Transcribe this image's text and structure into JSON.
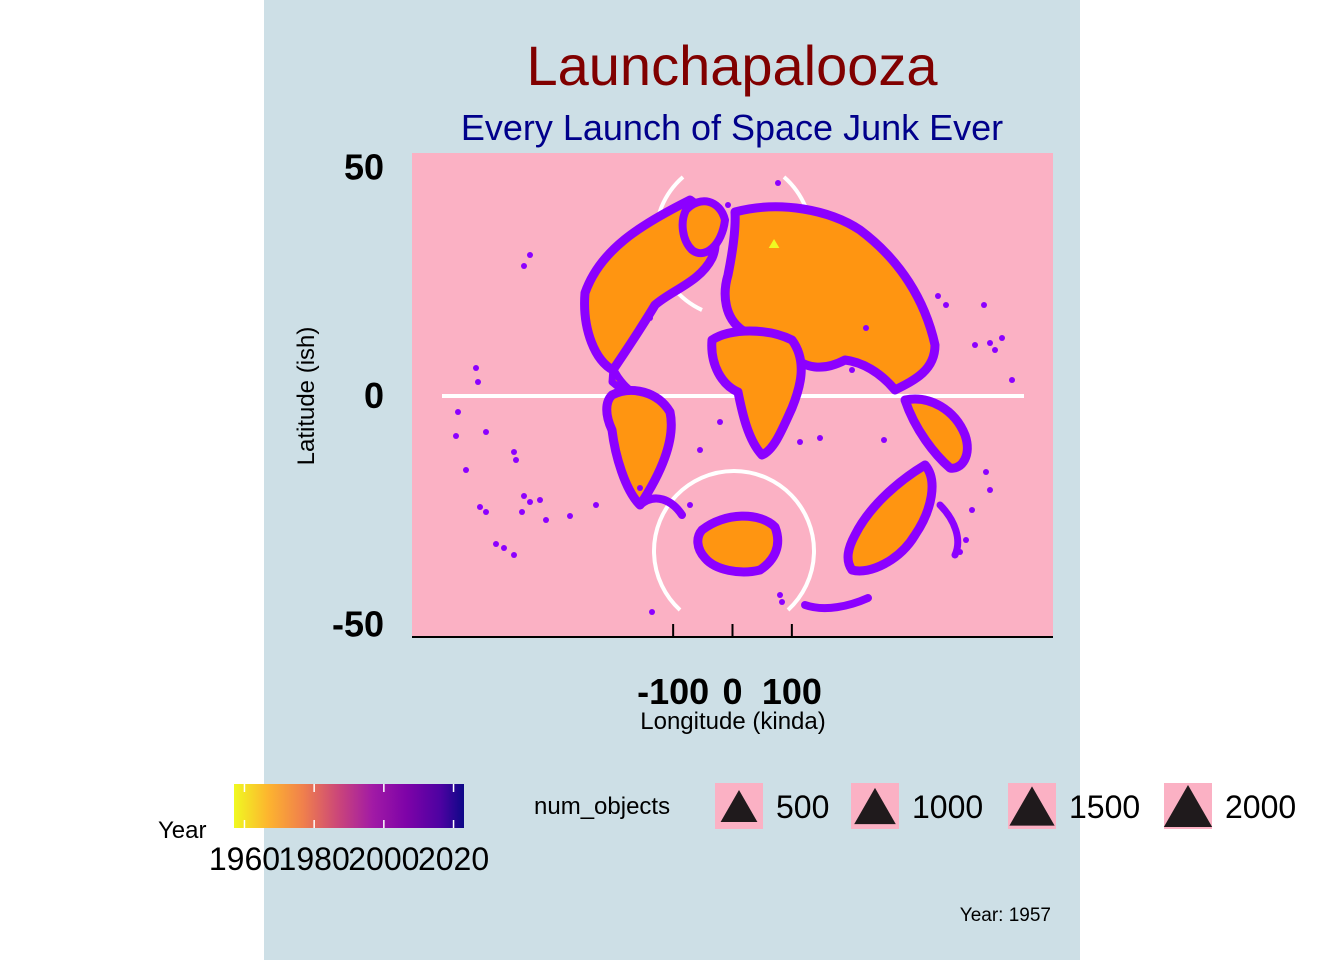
{
  "chart_data": {
    "type": "scatter",
    "title": "Launchapalooza",
    "subtitle": "Every Launch of Space Junk Ever",
    "xlabel": "Longitude (kinda)",
    "ylabel": "Latitude (ish)",
    "x_ticks": [
      -100,
      0,
      100
    ],
    "y_ticks": [
      50,
      0,
      -50
    ],
    "xlim": [
      -540,
      540
    ],
    "ylim": [
      -53,
      53
    ],
    "caption": "Year: 1957",
    "colors": {
      "panel_background": "#cddfe6",
      "plot_background": "#fbb1c4",
      "land_fill": "#ff9511",
      "land_outline": "#8c00ff",
      "guide_lines": "#ffffff"
    },
    "series": [
      {
        "x": [
          70
        ],
        "y": [
          33
        ],
        "num_objects": 1,
        "year": 1957
      }
    ],
    "legend": {
      "color": {
        "title": "Year",
        "scale": "plasma",
        "labels": [
          "1960",
          "1980",
          "2000",
          "2020"
        ],
        "limits": [
          1957,
          2023
        ]
      },
      "size": {
        "title": "num_objects",
        "labels": [
          "500",
          "1000",
          "1500",
          "2000"
        ],
        "values": [
          500,
          1000,
          1500,
          2000
        ]
      },
      "position": "bottom"
    }
  }
}
